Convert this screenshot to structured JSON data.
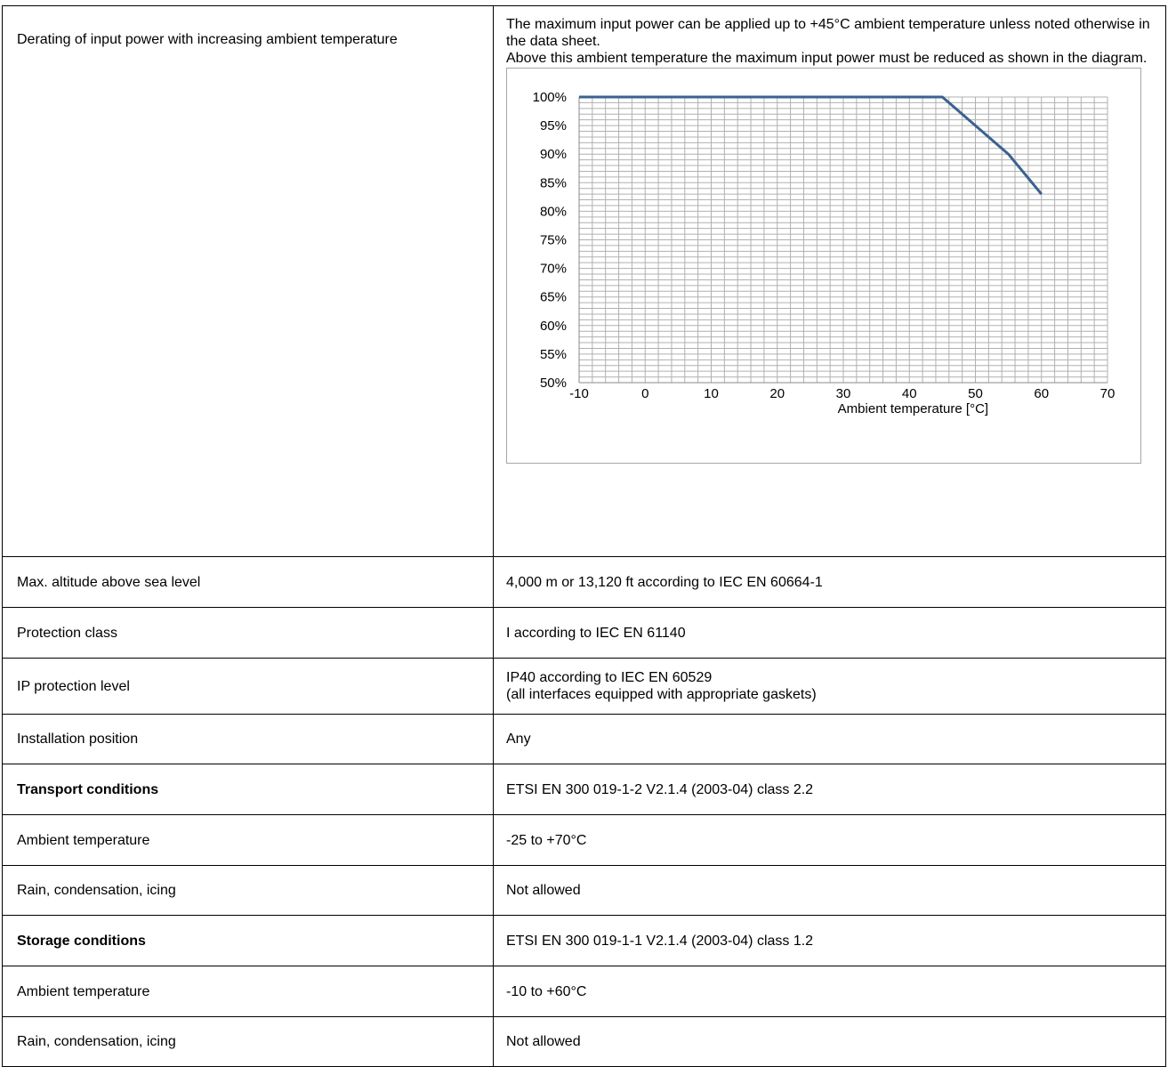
{
  "rows": [
    {
      "label": "Derating of input power with increasing ambient temperature",
      "value_lines": [
        "The maximum input power can be applied up to +45°C ambient temperature unless noted otherwise in the data sheet.",
        "Above this ambient temperature the maximum input power must be reduced as shown in the diagram."
      ]
    },
    {
      "label": "Max. altitude above sea level",
      "value": "4,000 m or 13,120 ft according to IEC EN 60664-1"
    },
    {
      "label": "Protection class",
      "value": "I according to IEC EN 61140"
    },
    {
      "label": "IP protection level",
      "value_lines": [
        "IP40 according to IEC EN 60529",
        "(all interfaces equipped with appropriate gaskets)"
      ]
    },
    {
      "label": "Installation position",
      "value": "Any"
    },
    {
      "label": "Transport conditions",
      "value": "ETSI EN 300 019-1-2 V2.1.4 (2003-04) class 2.2",
      "bold_label": true
    },
    {
      "label": "Ambient temperature",
      "value": "-25 to +70°C"
    },
    {
      "label": "Rain, condensation, icing",
      "value": "Not allowed"
    },
    {
      "label": "Storage conditions",
      "value": "ETSI EN 300 019-1-1 V2.1.4 (2003-04) class 1.2",
      "bold_label": true
    },
    {
      "label": "Ambient temperature",
      "value": "-10 to +60°C"
    },
    {
      "label": "Rain, condensation, icing",
      "value": "Not allowed"
    }
  ],
  "chart_data": {
    "type": "line",
    "title": "",
    "xlabel": "Ambient temperature [°C]",
    "ylabel": "",
    "xlim": [
      -10,
      70
    ],
    "ylim": [
      50,
      100
    ],
    "x_ticks": [
      -10,
      0,
      10,
      20,
      30,
      40,
      50,
      60,
      70
    ],
    "x_tick_labels": [
      "-10",
      "0",
      "10",
      "20",
      "30",
      "40",
      "50",
      "60",
      "70"
    ],
    "y_ticks": [
      50,
      55,
      60,
      65,
      70,
      75,
      80,
      85,
      90,
      95,
      100
    ],
    "y_tick_labels": [
      "50%",
      "55%",
      "60%",
      "65%",
      "70%",
      "75%",
      "80%",
      "85%",
      "90%",
      "95%",
      "100%"
    ],
    "grid": true,
    "minor_grid_x_step": 2,
    "minor_grid_y_step": 1,
    "series": [
      {
        "x": [
          -10,
          45,
          50,
          55,
          60
        ],
        "y": [
          100,
          100,
          95,
          90,
          83
        ],
        "color": "#3a6190"
      }
    ]
  }
}
